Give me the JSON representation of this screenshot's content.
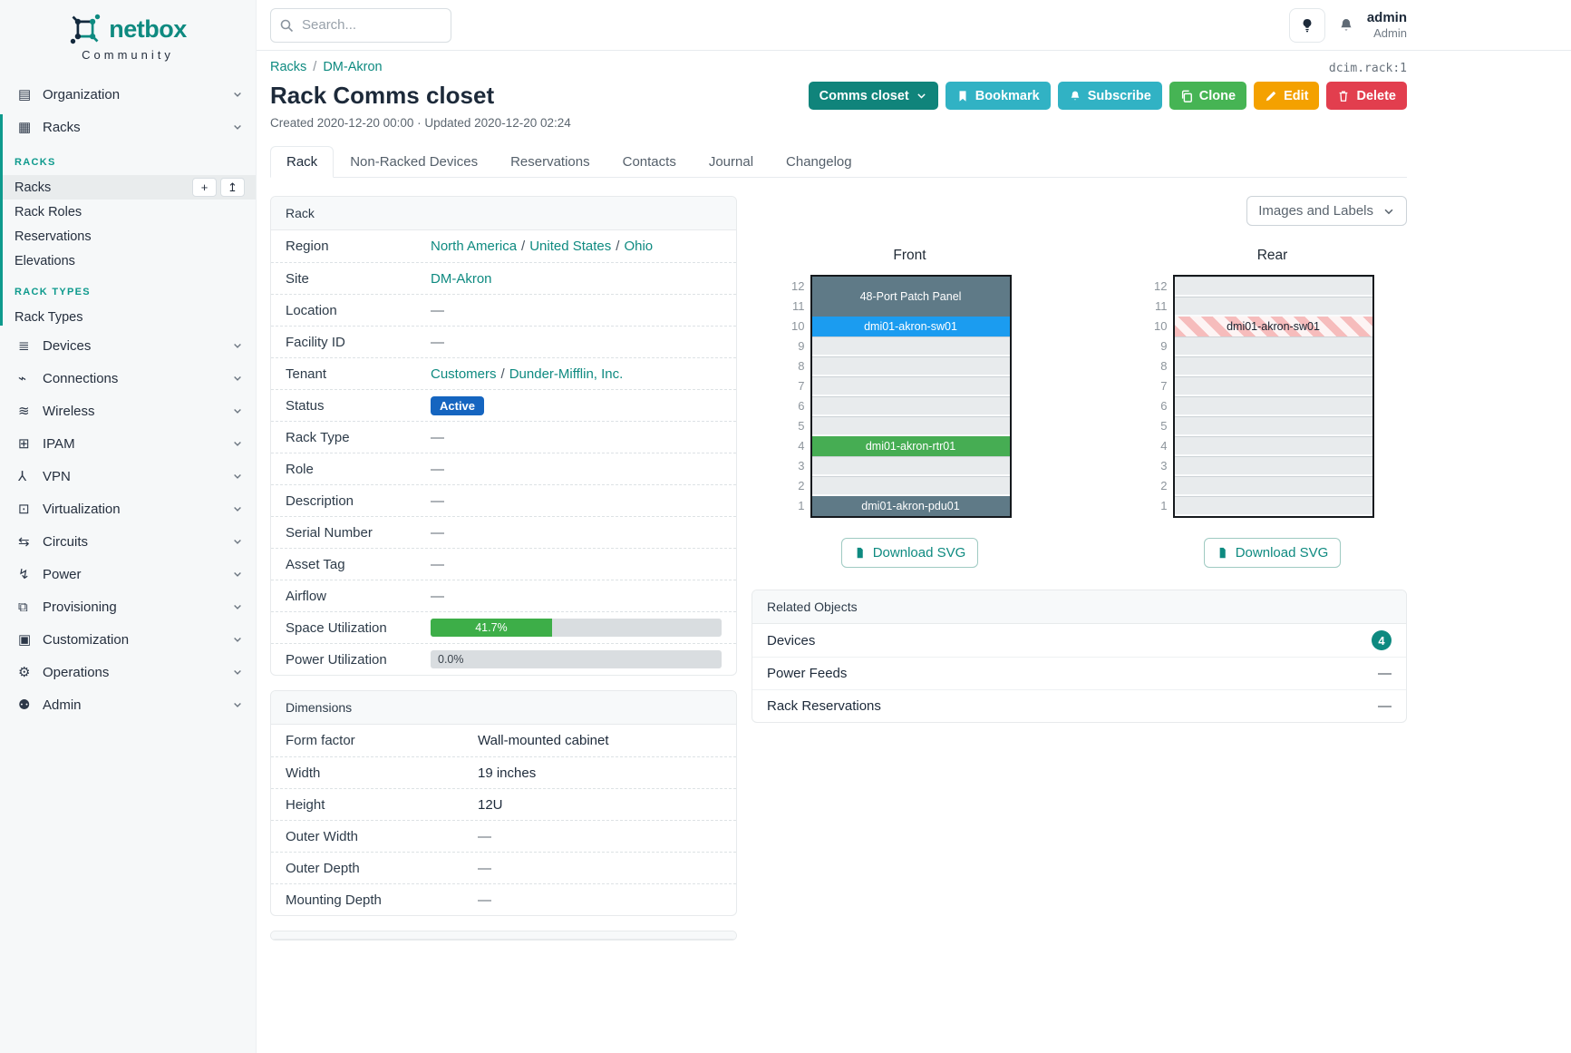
{
  "brand": {
    "name": "netbox",
    "subtitle": "Community"
  },
  "search": {
    "placeholder": "Search..."
  },
  "user": {
    "name": "admin",
    "role": "Admin"
  },
  "object_id": "dcim.rack:1",
  "breadcrumb": [
    {
      "label": "Racks"
    },
    {
      "label": "DM-Akron"
    }
  ],
  "page": {
    "title": "Rack Comms closet",
    "meta": "Created 2020-12-20 00:00 · Updated 2020-12-20 02:24"
  },
  "actions": [
    {
      "name": "comms-closet",
      "label": "Comms closet",
      "color": "#10847b",
      "icon": "chevron-after"
    },
    {
      "name": "bookmark",
      "label": "Bookmark",
      "color": "#31b2c4",
      "icon": "bookmark"
    },
    {
      "name": "subscribe",
      "label": "Subscribe",
      "color": "#31b2c4",
      "icon": "bell"
    },
    {
      "name": "clone",
      "label": "Clone",
      "color": "#46b454",
      "icon": "copy"
    },
    {
      "name": "edit",
      "label": "Edit",
      "color": "#f4a100",
      "icon": "pencil"
    },
    {
      "name": "delete",
      "label": "Delete",
      "color": "#e23e4e",
      "icon": "trash"
    }
  ],
  "tabs": [
    {
      "label": "Rack",
      "active": true
    },
    {
      "label": "Non-Racked Devices"
    },
    {
      "label": "Reservations"
    },
    {
      "label": "Contacts"
    },
    {
      "label": "Journal"
    },
    {
      "label": "Changelog"
    }
  ],
  "sidebar": {
    "items_top": [
      {
        "icon": "building",
        "label": "Organization"
      }
    ],
    "expanded_parent": {
      "icon": "rack",
      "label": "Racks"
    },
    "groups": [
      {
        "header": "RACKS",
        "items": [
          {
            "label": "Racks",
            "active": true,
            "buttons": [
              {
                "icon": "plus",
                "name": "add"
              },
              {
                "icon": "upload",
                "name": "import"
              }
            ]
          },
          {
            "label": "Rack Roles"
          },
          {
            "label": "Reservations"
          },
          {
            "label": "Elevations"
          }
        ]
      },
      {
        "header": "RACK TYPES",
        "items": [
          {
            "label": "Rack Types"
          }
        ]
      }
    ],
    "items_bottom": [
      {
        "icon": "devices",
        "label": "Devices"
      },
      {
        "icon": "plug",
        "label": "Connections"
      },
      {
        "icon": "wifi",
        "label": "Wireless"
      },
      {
        "icon": "ipam",
        "label": "IPAM"
      },
      {
        "icon": "vpn",
        "label": "VPN"
      },
      {
        "icon": "monitor",
        "label": "Virtualization"
      },
      {
        "icon": "circuit",
        "label": "Circuits"
      },
      {
        "icon": "bolt",
        "label": "Power"
      },
      {
        "icon": "doc",
        "label": "Provisioning"
      },
      {
        "icon": "briefcase",
        "label": "Customization"
      },
      {
        "icon": "gears",
        "label": "Operations"
      },
      {
        "icon": "users",
        "label": "Admin"
      }
    ]
  },
  "rack_panel": {
    "title": "Rack",
    "rows": [
      {
        "label": "Region",
        "type": "links",
        "parts": [
          "North America",
          "United States",
          "Ohio"
        ]
      },
      {
        "label": "Site",
        "type": "links",
        "parts": [
          "DM-Akron"
        ]
      },
      {
        "label": "Location",
        "type": "dash"
      },
      {
        "label": "Facility ID",
        "type": "dash"
      },
      {
        "label": "Tenant",
        "type": "links",
        "parts": [
          "Customers",
          "Dunder-Mifflin, Inc."
        ]
      },
      {
        "label": "Status",
        "type": "badge",
        "text": "Active"
      },
      {
        "label": "Rack Type",
        "type": "dash"
      },
      {
        "label": "Role",
        "type": "dash"
      },
      {
        "label": "Description",
        "type": "dash"
      },
      {
        "label": "Serial Number",
        "type": "dash"
      },
      {
        "label": "Asset Tag",
        "type": "dash"
      },
      {
        "label": "Airflow",
        "type": "dash"
      },
      {
        "label": "Space Utilization",
        "type": "progress",
        "percent": 41.7,
        "text": "41.7%"
      },
      {
        "label": "Power Utilization",
        "type": "progress",
        "percent": 0,
        "text": "0.0%"
      }
    ]
  },
  "dimensions_panel": {
    "title": "Dimensions",
    "rows": [
      {
        "label": "Form factor",
        "type": "text",
        "text": "Wall-mounted cabinet"
      },
      {
        "label": "Width",
        "type": "text",
        "text": "19 inches"
      },
      {
        "label": "Height",
        "type": "text",
        "text": "12U"
      },
      {
        "label": "Outer Width",
        "type": "dash"
      },
      {
        "label": "Outer Depth",
        "type": "dash"
      },
      {
        "label": "Mounting Depth",
        "type": "dash"
      }
    ]
  },
  "elevations": {
    "toggle_label": "Images and Labels",
    "download_label": "Download SVG",
    "unit_numbers": [
      12,
      11,
      10,
      9,
      8,
      7,
      6,
      5,
      4,
      3,
      2,
      1
    ],
    "views": [
      {
        "title": "Front",
        "units": [
          {
            "span": 2,
            "label": "48-Port Patch Panel",
            "style": "dark"
          },
          {
            "span": 1,
            "label": "dmi01-akron-sw01",
            "style": "blue"
          },
          {
            "span": 1,
            "style": "empty"
          },
          {
            "span": 1,
            "style": "empty"
          },
          {
            "span": 1,
            "style": "empty"
          },
          {
            "span": 1,
            "style": "empty"
          },
          {
            "span": 1,
            "style": "empty"
          },
          {
            "span": 1,
            "label": "dmi01-akron-rtr01",
            "style": "green"
          },
          {
            "span": 1,
            "style": "empty"
          },
          {
            "span": 1,
            "style": "empty"
          },
          {
            "span": 1,
            "label": "dmi01-akron-pdu01",
            "style": "dark"
          }
        ]
      },
      {
        "title": "Rear",
        "units": [
          {
            "span": 1,
            "style": "empty"
          },
          {
            "span": 1,
            "style": "empty"
          },
          {
            "span": 1,
            "label": "dmi01-akron-sw01",
            "style": "ghost"
          },
          {
            "span": 1,
            "style": "empty"
          },
          {
            "span": 1,
            "style": "empty"
          },
          {
            "span": 1,
            "style": "empty"
          },
          {
            "span": 1,
            "style": "empty"
          },
          {
            "span": 1,
            "style": "empty"
          },
          {
            "span": 1,
            "style": "empty"
          },
          {
            "span": 1,
            "style": "empty"
          },
          {
            "span": 1,
            "style": "empty"
          },
          {
            "span": 1,
            "style": "empty"
          }
        ]
      }
    ]
  },
  "related_objects": {
    "title": "Related Objects",
    "rows": [
      {
        "label": "Devices",
        "count": "4"
      },
      {
        "label": "Power Feeds",
        "dash": "—"
      },
      {
        "label": "Rack Reservations",
        "dash": "—"
      }
    ]
  },
  "colors": {
    "brand_teal": "#0e8a80",
    "status_active": "#1565c0",
    "progress_green": "#3dae48",
    "device_dark": "#5f7a87",
    "device_blue": "#1b9cf0",
    "device_green": "#46ad53",
    "empty_unit": "#e8ebed",
    "ghost_stripe": "#f6bcbc",
    "count_badge": "#0e8a80"
  }
}
